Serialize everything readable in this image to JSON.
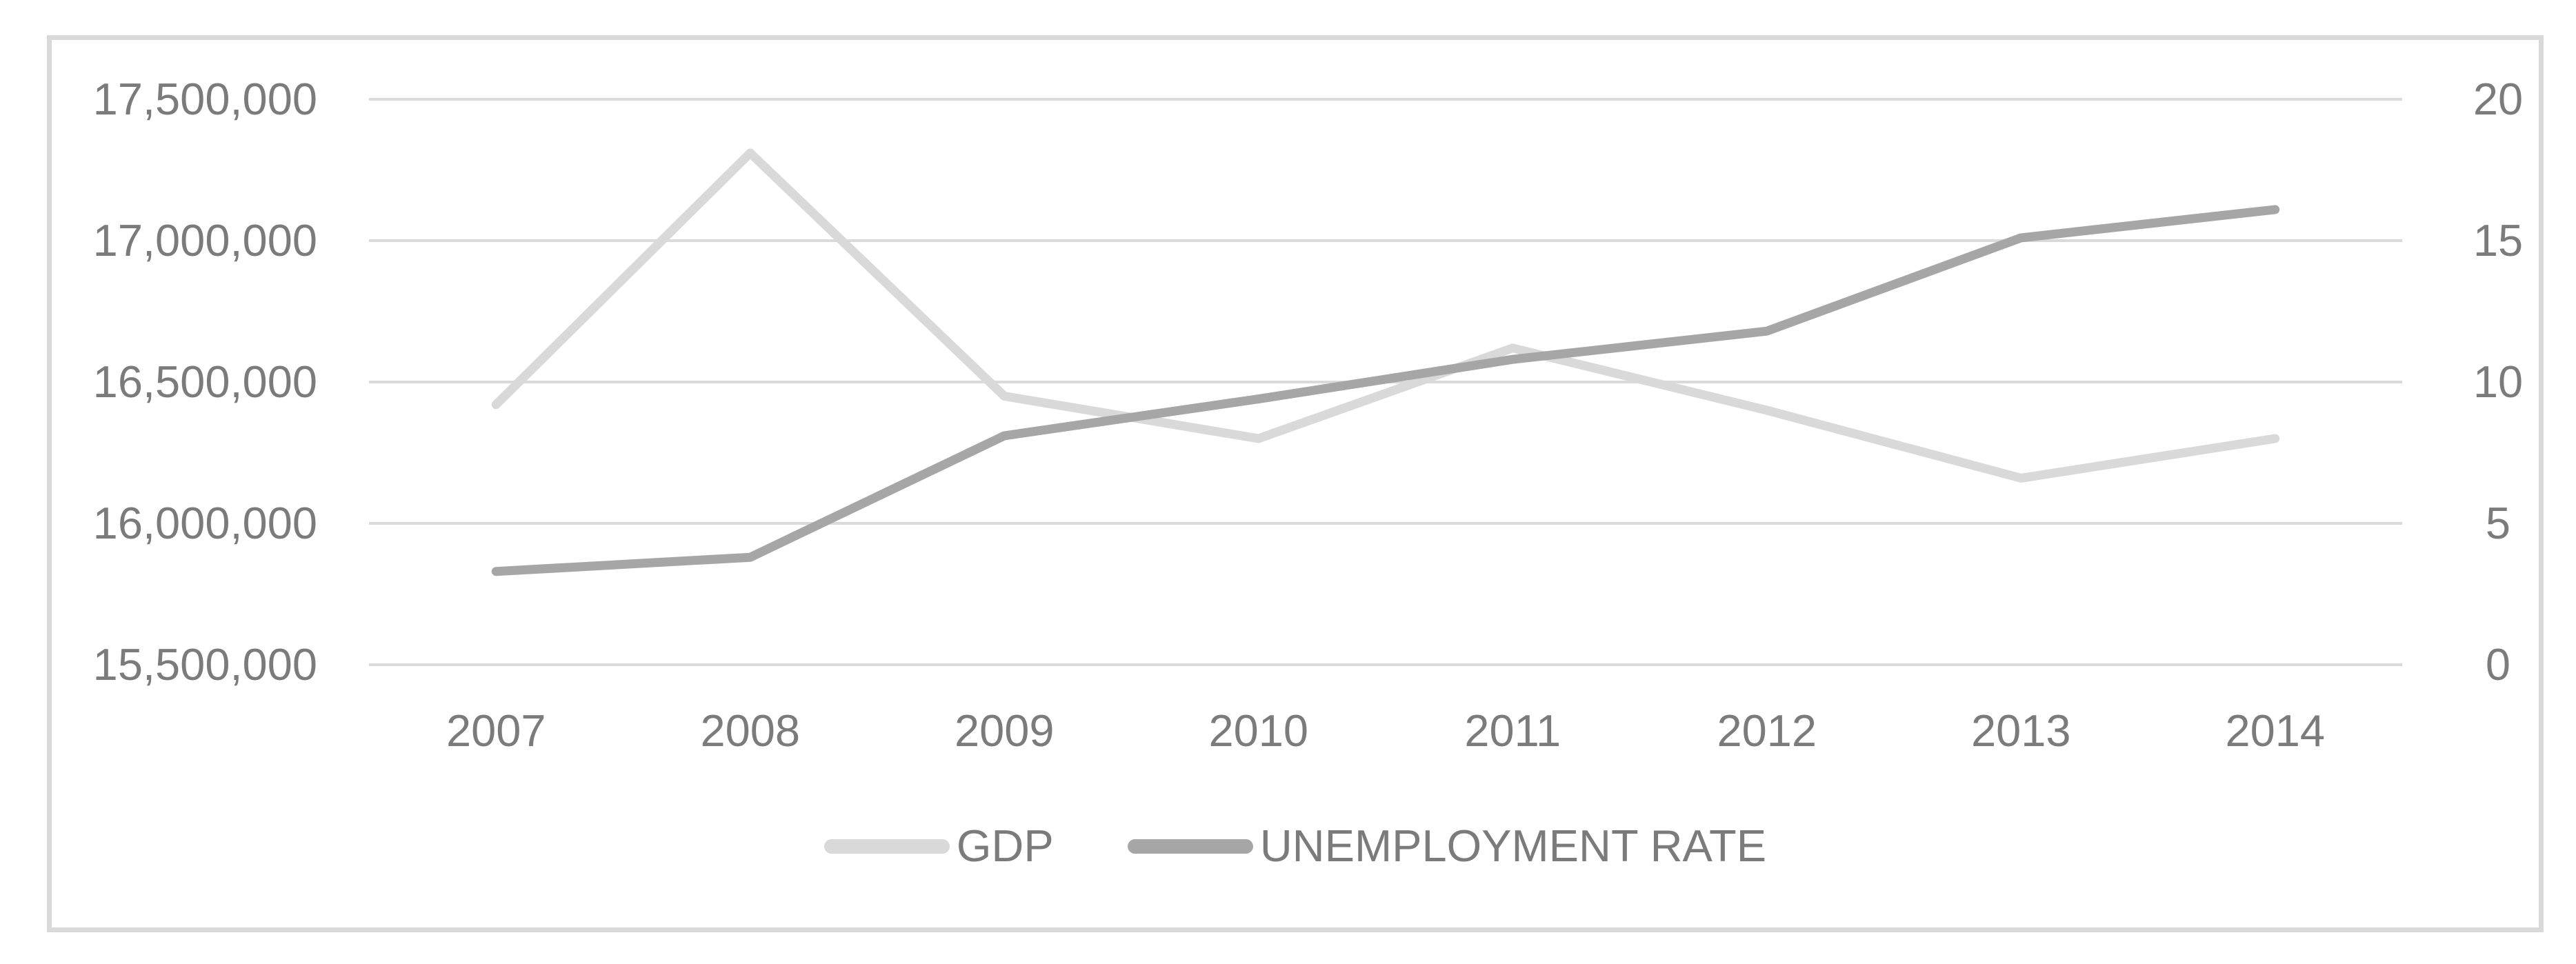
{
  "chart_data": {
    "type": "line",
    "title": "",
    "categories": [
      "2007",
      "2008",
      "2009",
      "2010",
      "2011",
      "2012",
      "2013",
      "2014"
    ],
    "series": [
      {
        "name": "GDP",
        "axis": "left",
        "color": "#d9d9d9",
        "values": [
          16420000,
          17310000,
          16450000,
          16300000,
          16620000,
          16400000,
          16160000,
          16300000
        ]
      },
      {
        "name": "UNEMPLOYMENT RATE",
        "axis": "right",
        "color": "#a6a6a6",
        "values": [
          3.3,
          3.8,
          8.1,
          9.4,
          10.8,
          11.8,
          15.1,
          16.1
        ]
      }
    ],
    "left_axis": {
      "min": 15500000,
      "max": 17500000,
      "tick_labels": [
        "17,500,000",
        "17,000,000",
        "16,500,000",
        "16,000,000",
        "15,500,000"
      ],
      "tick_values": [
        17500000,
        17000000,
        16500000,
        16000000,
        15500000
      ]
    },
    "right_axis": {
      "min": 0,
      "max": 20,
      "tick_labels": [
        "20",
        "15",
        "10",
        "5",
        "0"
      ],
      "tick_values": [
        20,
        15,
        10,
        5,
        0
      ]
    },
    "grid": true,
    "grid_color": "#dadada",
    "frame_color": "#d9d9d9",
    "text_color": "#7b7b7b",
    "legend_position": "bottom"
  }
}
